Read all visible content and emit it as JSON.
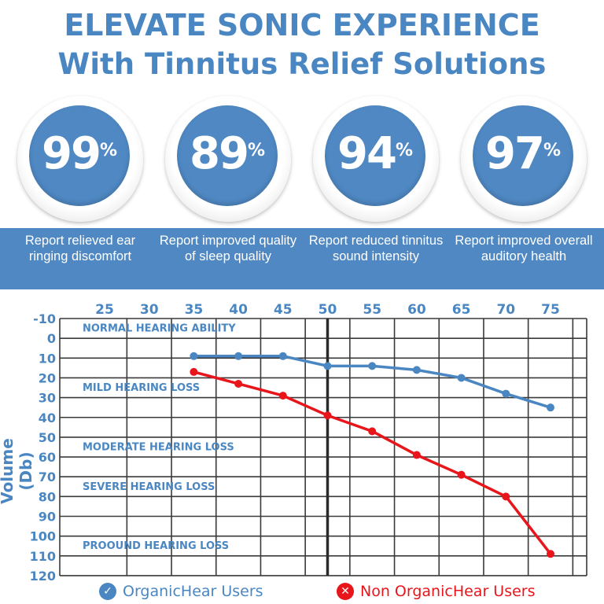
{
  "header": {
    "line1": "ELEVATE SONIC EXPERIENCE",
    "line2": "With Tinnitus Relief Solutions"
  },
  "stats": [
    {
      "value": "99",
      "unit": "%",
      "caption": "Report relieved ear ringing discomfort"
    },
    {
      "value": "89",
      "unit": "%",
      "caption": "Report improved quality of sleep quality"
    },
    {
      "value": "94",
      "unit": "%",
      "caption": "Report reduced tinnitus sound intensity"
    },
    {
      "value": "97",
      "unit": "%",
      "caption": "Report improved overall auditory health"
    }
  ],
  "colors": {
    "accent": "#4f88c3",
    "title": "#4a87c2",
    "series_organic": "#4a87c2",
    "series_non_organic": "#e8151b",
    "grid": "#3a3a3a"
  },
  "chart_data": {
    "type": "line",
    "ylabel": "Volume (Db)",
    "x_ticks": [
      25,
      30,
      35,
      40,
      45,
      50,
      55,
      60,
      65,
      70,
      75
    ],
    "y_ticks": [
      -10,
      0,
      10,
      20,
      30,
      40,
      50,
      60,
      70,
      80,
      90,
      100,
      110,
      120
    ],
    "xlim": [
      25,
      75
    ],
    "ylim": [
      -10,
      120
    ],
    "y_inverted": true,
    "grid": true,
    "divider_at_x": 50,
    "zones": [
      {
        "label": "NORMAL HEARING ABILITY",
        "y": -5
      },
      {
        "label": "MILD HEARING LOSS",
        "y": 25
      },
      {
        "label": "MODERATE HEARING LOSS",
        "y": 55
      },
      {
        "label": "SEVERE HEARING LOSS",
        "y": 75
      },
      {
        "label": "PROOUND HEARING LOSS",
        "y": 105
      }
    ],
    "series": [
      {
        "name": "OrganicHear Users",
        "icon": "check-circle-icon",
        "x": [
          35,
          40,
          45,
          50,
          55,
          60,
          65,
          70,
          75
        ],
        "values": [
          9,
          9,
          9,
          14,
          14,
          16,
          20,
          28,
          35
        ]
      },
      {
        "name": "Non OrganicHear Users",
        "icon": "x-circle-icon",
        "x": [
          35,
          40,
          45,
          50,
          55,
          60,
          65,
          70,
          75
        ],
        "values": [
          17,
          23,
          29,
          39,
          47,
          59,
          69,
          80,
          109
        ]
      }
    ],
    "legend_position": "bottom"
  }
}
